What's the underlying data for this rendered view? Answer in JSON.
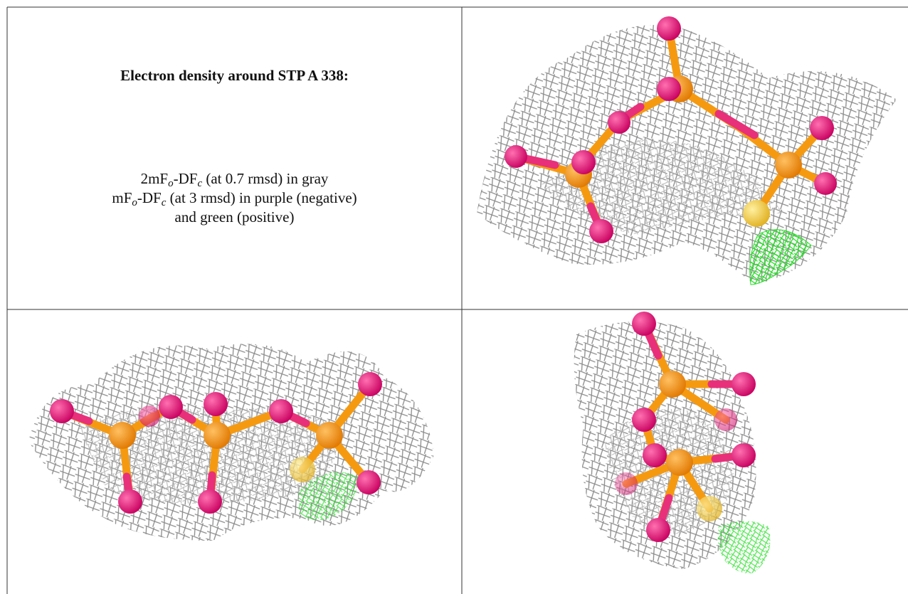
{
  "caption": {
    "title": "Electron density around STP A 338:",
    "lines": [
      [
        "2mF",
        "o",
        "-DF",
        "c",
        " (at 0.7 rmsd) in gray"
      ],
      [
        "mF",
        "o",
        "-DF",
        "c",
        " (at 3 rmsd) in purple (negative)"
      ],
      [
        "and green (positive)"
      ]
    ]
  }
}
